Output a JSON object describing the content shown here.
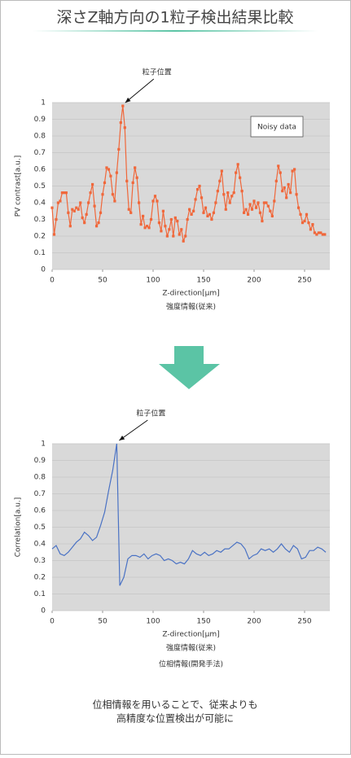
{
  "header": {
    "title": "深さZ軸方向の1粒子検出結果比較"
  },
  "footer": {
    "lines": [
      "位相情報を用いることで、従来よりも",
      "高精度な位置検出が可能に"
    ]
  },
  "chart_data": [
    {
      "type": "line",
      "ylabel": "PV contrast[a.u.]",
      "xlabel": "Z-direction[μm]",
      "notes": [
        "強度情報(従来)"
      ],
      "annotation": {
        "text": "粒子位置"
      },
      "markers": true,
      "grid": true,
      "legend": "top-right",
      "xlim": [
        0,
        275
      ],
      "xticks": [
        0,
        50,
        100,
        150,
        200,
        250
      ],
      "ylim": [
        0,
        1
      ],
      "yticks": [
        0,
        0.1,
        0.2,
        0.3,
        0.4,
        0.5,
        0.6,
        0.7,
        0.8,
        0.9,
        1
      ],
      "x": [
        0,
        2,
        4,
        6,
        8,
        10,
        12,
        14,
        16,
        18,
        20,
        22,
        24,
        26,
        28,
        30,
        32,
        34,
        36,
        38,
        40,
        42,
        44,
        46,
        48,
        50,
        52,
        54,
        56,
        58,
        60,
        62,
        64,
        66,
        68,
        70,
        72,
        74,
        76,
        78,
        80,
        82,
        84,
        86,
        88,
        90,
        92,
        94,
        96,
        98,
        100,
        102,
        104,
        106,
        108,
        110,
        112,
        114,
        116,
        118,
        120,
        122,
        124,
        126,
        128,
        130,
        132,
        134,
        136,
        138,
        140,
        142,
        144,
        146,
        148,
        150,
        152,
        154,
        156,
        158,
        160,
        162,
        164,
        166,
        168,
        170,
        172,
        174,
        176,
        178,
        180,
        182,
        184,
        186,
        188,
        190,
        192,
        194,
        196,
        198,
        200,
        202,
        204,
        206,
        208,
        210,
        212,
        214,
        216,
        218,
        220,
        222,
        224,
        226,
        228,
        230,
        232,
        234,
        236,
        238,
        240,
        242,
        244,
        246,
        248,
        250,
        252,
        254,
        256,
        258,
        260,
        262,
        264,
        266,
        268,
        270
      ],
      "series": [
        {
          "name": "Noisy data",
          "color": "#f0673a",
          "values": [
            0.37,
            0.21,
            0.3,
            0.4,
            0.41,
            0.46,
            0.46,
            0.46,
            0.34,
            0.26,
            0.36,
            0.35,
            0.37,
            0.36,
            0.4,
            0.31,
            0.28,
            0.33,
            0.4,
            0.46,
            0.51,
            0.38,
            0.26,
            0.28,
            0.34,
            0.45,
            0.52,
            0.61,
            0.6,
            0.56,
            0.45,
            0.41,
            0.58,
            0.72,
            0.88,
            0.98,
            0.85,
            0.53,
            0.36,
            0.34,
            0.52,
            0.61,
            0.55,
            0.4,
            0.27,
            0.32,
            0.25,
            0.26,
            0.25,
            0.3,
            0.41,
            0.44,
            0.41,
            0.28,
            0.23,
            0.35,
            0.26,
            0.2,
            0.24,
            0.3,
            0.2,
            0.31,
            0.29,
            0.21,
            0.24,
            0.17,
            0.2,
            0.3,
            0.36,
            0.33,
            0.35,
            0.42,
            0.48,
            0.5,
            0.43,
            0.34,
            0.37,
            0.32,
            0.33,
            0.3,
            0.34,
            0.4,
            0.47,
            0.53,
            0.59,
            0.45,
            0.36,
            0.46,
            0.4,
            0.44,
            0.46,
            0.58,
            0.63,
            0.55,
            0.47,
            0.34,
            0.36,
            0.33,
            0.39,
            0.36,
            0.41,
            0.37,
            0.4,
            0.34,
            0.29,
            0.4,
            0.4,
            0.38,
            0.35,
            0.32,
            0.41,
            0.53,
            0.62,
            0.58,
            0.47,
            0.49,
            0.43,
            0.51,
            0.46,
            0.59,
            0.6,
            0.45,
            0.37,
            0.33,
            0.28,
            0.29,
            0.33,
            0.28,
            0.24,
            0.27,
            0.22,
            0.21,
            0.22,
            0.22,
            0.21,
            0.21
          ]
        }
      ]
    },
    {
      "type": "line",
      "ylabel": "Correlation[a.u.]",
      "xlabel": "Z-direction[μm]",
      "notes": [
        "強度情報(従来)",
        "位相情報(開発手法)"
      ],
      "annotation": {
        "text": "粒子位置"
      },
      "markers": false,
      "grid": true,
      "xlim": [
        0,
        275
      ],
      "xticks": [
        0,
        50,
        100,
        150,
        200,
        250
      ],
      "ylim": [
        0,
        1
      ],
      "yticks": [
        0,
        0.1,
        0.2,
        0.3,
        0.4,
        0.5,
        0.6,
        0.7,
        0.8,
        0.9,
        1
      ],
      "x": [
        0,
        4,
        8,
        12,
        16,
        20,
        24,
        28,
        32,
        36,
        40,
        44,
        48,
        52,
        56,
        60,
        64,
        67,
        71,
        75,
        79,
        83,
        87,
        91,
        95,
        99,
        103,
        107,
        111,
        115,
        119,
        123,
        127,
        131,
        135,
        139,
        143,
        147,
        151,
        155,
        159,
        163,
        167,
        171,
        175,
        179,
        183,
        187,
        191,
        195,
        199,
        203,
        207,
        211,
        215,
        219,
        223,
        227,
        231,
        235,
        239,
        243,
        247,
        251,
        255,
        259,
        263,
        267,
        271
      ],
      "series": [
        {
          "color": "#4a72c4",
          "values": [
            0.37,
            0.39,
            0.34,
            0.33,
            0.35,
            0.38,
            0.41,
            0.43,
            0.47,
            0.45,
            0.42,
            0.44,
            0.51,
            0.59,
            0.72,
            0.84,
            1.0,
            0.15,
            0.2,
            0.31,
            0.33,
            0.33,
            0.32,
            0.34,
            0.31,
            0.33,
            0.34,
            0.33,
            0.3,
            0.31,
            0.3,
            0.28,
            0.29,
            0.28,
            0.31,
            0.36,
            0.34,
            0.33,
            0.35,
            0.33,
            0.34,
            0.36,
            0.35,
            0.37,
            0.37,
            0.39,
            0.41,
            0.4,
            0.37,
            0.31,
            0.33,
            0.34,
            0.37,
            0.36,
            0.37,
            0.35,
            0.37,
            0.4,
            0.37,
            0.35,
            0.39,
            0.37,
            0.31,
            0.32,
            0.36,
            0.36,
            0.38,
            0.37,
            0.35
          ]
        }
      ]
    }
  ]
}
